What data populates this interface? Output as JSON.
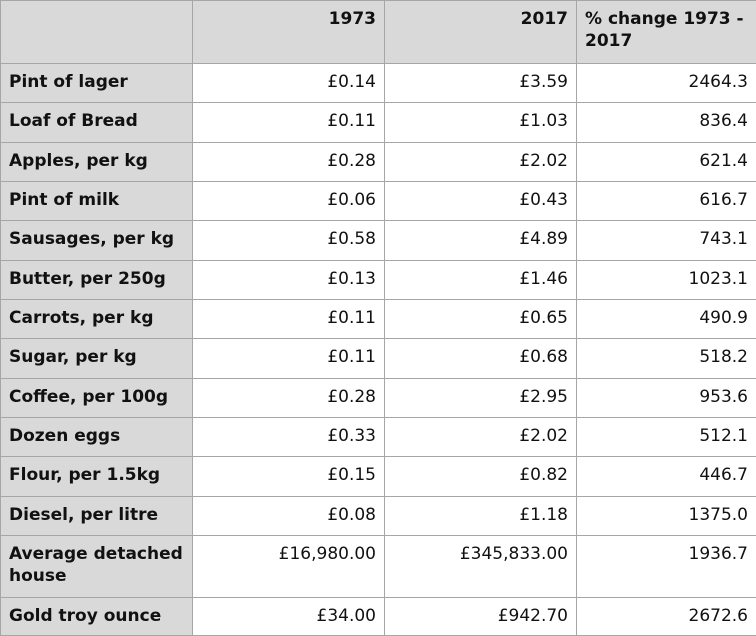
{
  "table": {
    "header": [
      "1973",
      "2017",
      "% change 1973 - 2017"
    ],
    "rows": [
      [
        "Pint of lager",
        "£0.14",
        "£3.59",
        "2464.3"
      ],
      [
        "Loaf of Bread",
        "£0.11",
        "£1.03",
        "836.4"
      ],
      [
        "Apples, per kg",
        "£0.28",
        "£2.02",
        "621.4"
      ],
      [
        "Pint of milk",
        "£0.06",
        "£0.43",
        "616.7"
      ],
      [
        "Sausages, per kg",
        "£0.58",
        "£4.89",
        "743.1"
      ],
      [
        "Butter, per 250g",
        "£0.13",
        "£1.46",
        "1023.1"
      ],
      [
        "Carrots, per kg",
        "£0.11",
        "£0.65",
        "490.9"
      ],
      [
        "Sugar, per kg",
        "£0.11",
        "£0.68",
        "518.2"
      ],
      [
        "Coffee, per 100g",
        "£0.28",
        "£2.95",
        "953.6"
      ],
      [
        "Dozen eggs",
        "£0.33",
        "£2.02",
        "512.1"
      ],
      [
        "Flour, per 1.5kg",
        "£0.15",
        "£0.82",
        "446.7"
      ],
      [
        "Diesel, per litre",
        "£0.08",
        "£1.18",
        "1375.0"
      ],
      [
        "Average detached house",
        "£16,980.00",
        "£345,833.00",
        "1936.7"
      ],
      [
        "Gold troy ounce",
        "£34.00",
        "£942.70",
        "2672.6"
      ]
    ]
  }
}
